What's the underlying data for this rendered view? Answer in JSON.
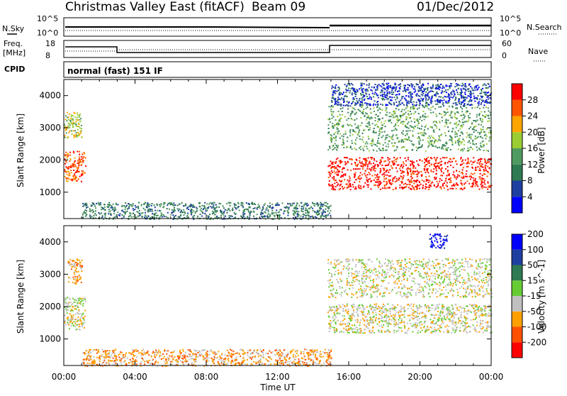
{
  "header": {
    "title": "Christmas Valley East (fitACF)",
    "beam": "Beam 09",
    "date": "01/Dec/2012"
  },
  "noise_panel": {
    "left_label": "N.Sky",
    "right_label": "N.Search",
    "left_ticks": [
      "10^5",
      "10^0"
    ],
    "right_ticks": [
      "10^5",
      "10^0"
    ]
  },
  "freq_panel": {
    "left_label_1": "Freq.",
    "left_label_2": "[MHz]",
    "right_label": "Nave",
    "left_ticks": [
      "18",
      "8"
    ],
    "right_ticks": [
      "60",
      "0"
    ],
    "cpid_label": "CPID",
    "cpid_text": "normal (fast) 151 IF"
  },
  "colors": {
    "power_scale": [
      "#0000ff",
      "#1f3fa0",
      "#2e7a52",
      "#4f9a60",
      "#9acd32",
      "#ffa500",
      "#ff5500",
      "#ff0000"
    ],
    "velocity_scale": [
      "#ff0000",
      "#ff5000",
      "#ffa000",
      "#c0c0c0",
      "#66cc33",
      "#2e7a52",
      "#1f3fa0",
      "#0000ff"
    ]
  },
  "chart_data": [
    {
      "type": "heatmap",
      "name": "power",
      "ylabel": "Slant Range [km]",
      "yticks": [
        1000,
        2000,
        3000,
        4000
      ],
      "ylim": [
        180,
        4500
      ],
      "xlim_hours": [
        0,
        24
      ],
      "colorbar": {
        "label": "Power [dB]",
        "ticks": [
          "4",
          "8",
          "12",
          "16",
          "20",
          "24",
          "28"
        ]
      },
      "regions": [
        {
          "t0": 0.0,
          "t1": 1.2,
          "r0": 1350,
          "r1": 2300,
          "level": 6
        },
        {
          "t0": 0.0,
          "t1": 1.0,
          "r0": 2700,
          "r1": 3500,
          "level": 4
        },
        {
          "t0": 1.0,
          "t1": 15.0,
          "r0": 180,
          "r1": 700,
          "level": 2
        },
        {
          "t0": 14.8,
          "t1": 24.0,
          "r0": 1100,
          "r1": 2100,
          "level": 7
        },
        {
          "t0": 14.8,
          "t1": 24.0,
          "r0": 2300,
          "r1": 3700,
          "level": 3
        },
        {
          "t0": 15.0,
          "t1": 24.0,
          "r0": 3700,
          "r1": 4400,
          "level": 1
        }
      ]
    },
    {
      "type": "heatmap",
      "name": "velocity",
      "ylabel": "Slant Range [km]",
      "xlabel": "Time UT",
      "yticks": [
        1000,
        2000,
        3000,
        4000
      ],
      "ylim": [
        180,
        4500
      ],
      "xticks": [
        "00:00",
        "04:00",
        "08:00",
        "12:00",
        "16:00",
        "20:00",
        "00:00"
      ],
      "xlim_hours": [
        0,
        24
      ],
      "colorbar": {
        "label": "Velocity [m s^-1]",
        "ticks": [
          "-200",
          "-100",
          "-50",
          "-15",
          "15",
          "50",
          "100",
          "200"
        ]
      },
      "regions": [
        {
          "t0": 0.0,
          "t1": 1.2,
          "r0": 1300,
          "r1": 2300,
          "level": 3
        },
        {
          "t0": 0.2,
          "t1": 1.0,
          "r0": 2700,
          "r1": 3500,
          "level": 2
        },
        {
          "t0": 1.0,
          "t1": 15.0,
          "r0": 180,
          "r1": 700,
          "level": 2
        },
        {
          "t0": 14.8,
          "t1": 24.0,
          "r0": 1200,
          "r1": 2100,
          "level": 3
        },
        {
          "t0": 14.8,
          "t1": 24.0,
          "r0": 2300,
          "r1": 3500,
          "level": 3
        },
        {
          "t0": 20.5,
          "t1": 21.5,
          "r0": 3800,
          "r1": 4300,
          "level": 7
        }
      ]
    }
  ]
}
